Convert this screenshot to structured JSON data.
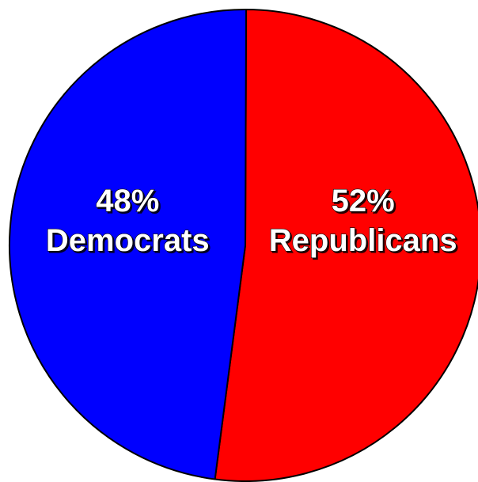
{
  "chart_data": {
    "type": "pie",
    "slices": [
      {
        "label": "Republicans",
        "percent_label": "52%",
        "value": 52,
        "color": "#ff0000"
      },
      {
        "label": "Democrats",
        "percent_label": "48%",
        "value": 48,
        "color": "#0000ff"
      }
    ],
    "title": "",
    "legend": "none",
    "start_angle": "top",
    "direction": "clockwise"
  }
}
